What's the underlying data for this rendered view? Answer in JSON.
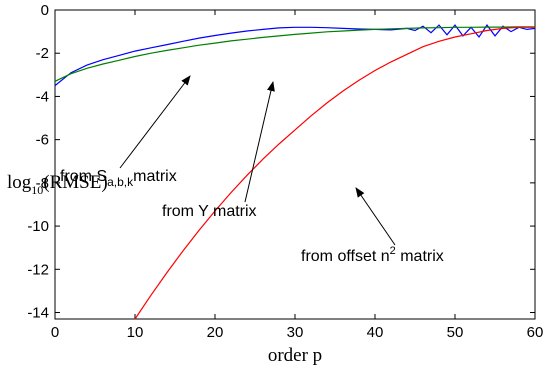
{
  "chart_data": {
    "type": "line",
    "title": "",
    "xlabel": "order p",
    "ylabel": {
      "main": "log",
      "sub": "10",
      "rest": "(RMSE)"
    },
    "xlim": [
      0,
      60
    ],
    "ylim": [
      -14.3,
      0
    ],
    "xticks": [
      "0",
      "10",
      "20",
      "30",
      "40",
      "50",
      "60"
    ],
    "yticks": [
      "0",
      "-2",
      "-4",
      "-6",
      "-8",
      "-10",
      "-12",
      "-14"
    ],
    "grid": false,
    "series": [
      {
        "color": "#0000ff",
        "x": [
          0,
          2,
          4,
          6,
          8,
          10,
          12,
          14,
          16,
          18,
          20,
          22,
          24,
          26,
          28,
          30,
          32,
          34,
          36,
          38,
          40,
          42,
          44,
          45,
          46,
          47,
          48,
          49,
          50,
          51,
          52,
          53,
          54,
          55,
          56,
          57,
          58,
          59,
          60
        ],
        "y": [
          -3.5,
          -2.9,
          -2.55,
          -2.3,
          -2.1,
          -1.9,
          -1.75,
          -1.6,
          -1.45,
          -1.3,
          -1.18,
          -1.07,
          -0.97,
          -0.9,
          -0.83,
          -0.8,
          -0.8,
          -0.82,
          -0.85,
          -0.88,
          -0.9,
          -0.92,
          -0.85,
          -0.95,
          -0.75,
          -1.05,
          -0.7,
          -1.15,
          -0.7,
          -1.2,
          -0.8,
          -1.25,
          -0.7,
          -1.2,
          -0.75,
          -1.0,
          -0.8,
          -0.9,
          -0.85
        ]
      },
      {
        "color": "#008000",
        "x": [
          0,
          2,
          4,
          6,
          8,
          10,
          12,
          14,
          16,
          18,
          20,
          22,
          24,
          26,
          28,
          30,
          32,
          34,
          36,
          38,
          40,
          42,
          44,
          46,
          48,
          50,
          52,
          54,
          56,
          58,
          60
        ],
        "y": [
          -3.3,
          -2.95,
          -2.7,
          -2.5,
          -2.33,
          -2.15,
          -2.0,
          -1.87,
          -1.75,
          -1.63,
          -1.53,
          -1.43,
          -1.35,
          -1.27,
          -1.2,
          -1.13,
          -1.07,
          -1.01,
          -0.97,
          -0.93,
          -0.9,
          -0.87,
          -0.85,
          -0.83,
          -0.82,
          -0.8,
          -0.8,
          -0.79,
          -0.79,
          -0.78,
          -0.78
        ]
      },
      {
        "color": "#ff0000",
        "x": [
          10,
          12,
          14,
          16,
          18,
          20,
          22,
          24,
          26,
          28,
          30,
          32,
          34,
          36,
          38,
          40,
          42,
          44,
          46,
          48,
          50,
          52,
          54,
          56,
          58,
          60
        ],
        "y": [
          -14.3,
          -13.2,
          -12.15,
          -11.15,
          -10.2,
          -9.3,
          -8.45,
          -7.65,
          -6.9,
          -6.2,
          -5.55,
          -4.9,
          -4.3,
          -3.75,
          -3.25,
          -2.8,
          -2.4,
          -2.05,
          -1.7,
          -1.45,
          -1.25,
          -1.1,
          -0.95,
          -0.85,
          -0.8,
          -0.8
        ]
      }
    ],
    "annotations": [
      {
        "text": "from S",
        "sub": "a,b,k",
        "rest": "matrix"
      },
      {
        "text": "from Y matrix"
      },
      {
        "text": "from offset n",
        "sup": "2",
        "rest": " matrix"
      }
    ]
  }
}
